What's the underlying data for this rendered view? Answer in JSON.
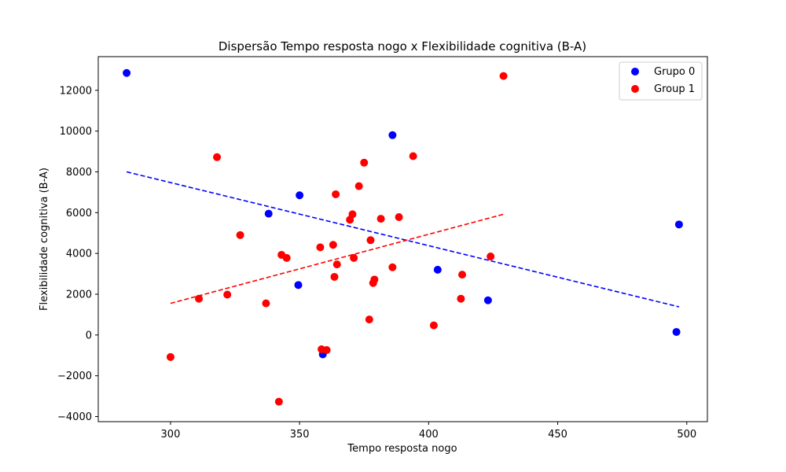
{
  "chart_data": {
    "type": "scatter",
    "title": "Dispersão Tempo resposta nogo x Flexibilidade cognitiva (B-A)",
    "xlabel": "Tempo resposta nogo",
    "ylabel": "Flexibilidade cognitiva (B-A)",
    "xlim": [
      272,
      508
    ],
    "ylim": [
      -4250,
      13650
    ],
    "xticks": [
      300,
      350,
      400,
      450,
      500
    ],
    "xtick_labels": [
      "300",
      "350",
      "400",
      "450",
      "500"
    ],
    "yticks": [
      -4000,
      -2000,
      0,
      2000,
      4000,
      6000,
      8000,
      10000,
      12000
    ],
    "ytick_labels": [
      "−4000",
      "−2000",
      "0",
      "2000",
      "4000",
      "6000",
      "8000",
      "10000",
      "12000"
    ],
    "grid": false,
    "legend_position": "top-right",
    "series": [
      {
        "name": "Grupo 0",
        "color": "#0000ff",
        "points": [
          [
            283,
            12850
          ],
          [
            338,
            5950
          ],
          [
            350,
            6850
          ],
          [
            349.5,
            2450
          ],
          [
            359,
            -950
          ],
          [
            386,
            9800
          ],
          [
            403.5,
            3200
          ],
          [
            423,
            1700
          ],
          [
            496,
            150
          ],
          [
            497,
            5420
          ]
        ],
        "trendline": {
          "x": [
            283,
            497
          ],
          "y": [
            8000,
            1380
          ]
        }
      },
      {
        "name": "Group 1",
        "color": "#ff0000",
        "points": [
          [
            300,
            -1080
          ],
          [
            311,
            1780
          ],
          [
            318,
            8720
          ],
          [
            322,
            1980
          ],
          [
            327,
            4900
          ],
          [
            337,
            1550
          ],
          [
            342,
            -3270
          ],
          [
            343,
            3930
          ],
          [
            345,
            3780
          ],
          [
            358,
            4300
          ],
          [
            358.5,
            -700
          ],
          [
            360.5,
            -740
          ],
          [
            363,
            4420
          ],
          [
            363.5,
            2850
          ],
          [
            364,
            6900
          ],
          [
            364.5,
            3460
          ],
          [
            369.5,
            5650
          ],
          [
            370.5,
            5920
          ],
          [
            371,
            3780
          ],
          [
            373,
            7300
          ],
          [
            375,
            8450
          ],
          [
            377,
            760
          ],
          [
            377.5,
            4650
          ],
          [
            378.5,
            2550
          ],
          [
            379,
            2720
          ],
          [
            381.5,
            5700
          ],
          [
            386,
            3320
          ],
          [
            388.5,
            5780
          ],
          [
            394,
            8770
          ],
          [
            402,
            470
          ],
          [
            412.5,
            1780
          ],
          [
            413,
            2960
          ],
          [
            424,
            3850
          ],
          [
            429,
            12700
          ]
        ],
        "trendline": {
          "x": [
            300,
            429
          ],
          "y": [
            1550,
            5920
          ]
        }
      }
    ]
  }
}
